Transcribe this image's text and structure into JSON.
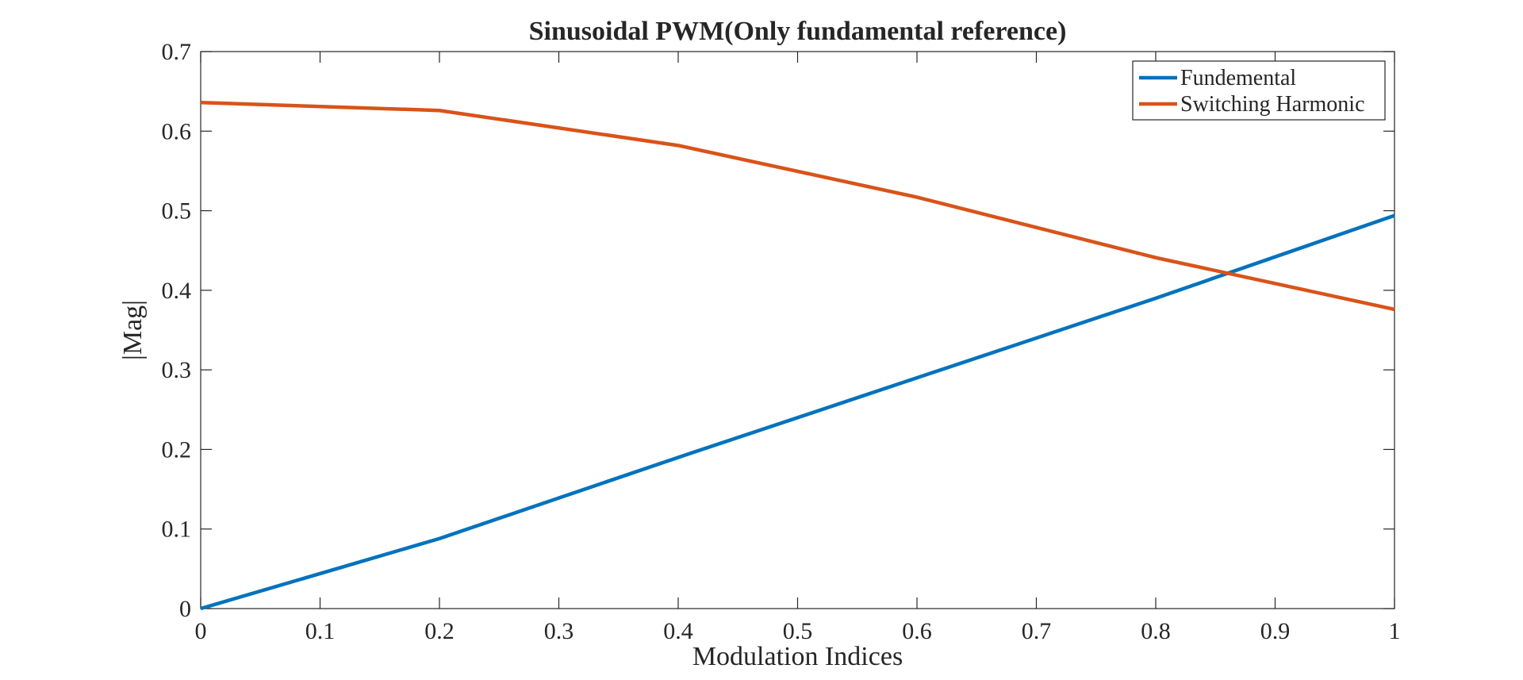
{
  "chart_data": {
    "type": "line",
    "title": "Sinusoidal PWM(Only fundamental reference)",
    "xlabel": "Modulation Indices",
    "ylabel": "|Mag|",
    "xlim": [
      0,
      1
    ],
    "ylim": [
      0,
      0.7
    ],
    "x_ticks": [
      "0",
      "0.1",
      "0.2",
      "0.3",
      "0.4",
      "0.5",
      "0.6",
      "0.7",
      "0.8",
      "0.9",
      "1"
    ],
    "y_ticks": [
      "0",
      "0.1",
      "0.2",
      "0.3",
      "0.4",
      "0.5",
      "0.6",
      "0.7"
    ],
    "grid": false,
    "legend_position": "top-right",
    "x": [
      0,
      0.2,
      0.4,
      0.6,
      0.8,
      1.0
    ],
    "series": [
      {
        "name": "Fundemental",
        "color": "#0072BD",
        "values": [
          0.0,
          0.088,
          0.19,
          0.29,
          0.39,
          0.494
        ]
      },
      {
        "name": "Switching Harmonic",
        "color": "#D95319",
        "values": [
          0.636,
          0.626,
          0.582,
          0.517,
          0.441,
          0.376
        ]
      }
    ]
  }
}
